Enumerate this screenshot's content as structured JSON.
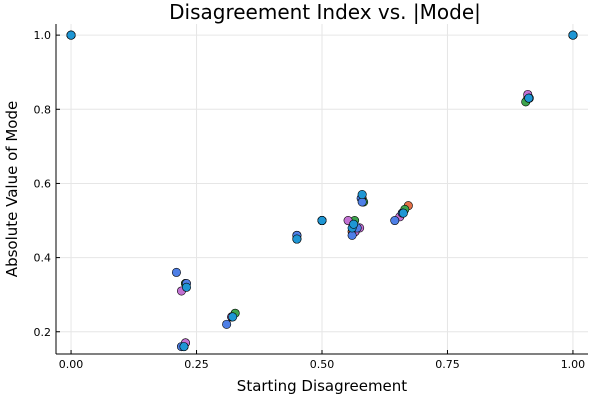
{
  "chart_data": {
    "type": "scatter",
    "title": "Disagreement Index vs. |Mode|",
    "xlabel": "Starting Disagreement",
    "ylabel": "Absolute Value of Mode",
    "xlim": [
      -0.03,
      1.03
    ],
    "ylim": [
      0.14,
      1.03
    ],
    "xticks": [
      0.0,
      0.25,
      0.5,
      0.75,
      1.0
    ],
    "xtick_labels": [
      "0.00",
      "0.25",
      "0.50",
      "0.75",
      "1.00"
    ],
    "yticks": [
      0.2,
      0.4,
      0.6,
      0.8,
      1.0
    ],
    "ytick_labels": [
      "0.2",
      "0.4",
      "0.6",
      "0.8",
      "1.0"
    ],
    "grid": true,
    "legend": "none",
    "series": [
      {
        "color": "#E26F46",
        "x": [
          0.0,
          0.228,
          0.228,
          0.32,
          0.45,
          0.5,
          0.56,
          0.58,
          0.66,
          0.672,
          0.91,
          1.0
        ],
        "y": [
          1.0,
          0.17,
          0.33,
          0.24,
          0.45,
          0.5,
          0.47,
          0.56,
          0.52,
          0.54,
          0.83,
          1.0
        ]
      },
      {
        "color": "#3DA44D",
        "x": [
          0.0,
          0.225,
          0.228,
          0.327,
          0.45,
          0.5,
          0.565,
          0.583,
          0.665,
          0.906,
          1.0
        ],
        "y": [
          1.0,
          0.16,
          0.33,
          0.25,
          0.45,
          0.5,
          0.5,
          0.55,
          0.53,
          0.82,
          1.0
        ]
      },
      {
        "color": "#C271D2",
        "x": [
          0.0,
          0.22,
          0.228,
          0.32,
          0.45,
          0.5,
          0.552,
          0.566,
          0.575,
          0.655,
          0.91,
          1.0
        ],
        "y": [
          1.0,
          0.31,
          0.17,
          0.24,
          0.46,
          0.5,
          0.5,
          0.47,
          0.48,
          0.51,
          0.84,
          1.0
        ]
      },
      {
        "color": "#4E7FE6",
        "x": [
          0.0,
          0.21,
          0.22,
          0.23,
          0.31,
          0.45,
          0.5,
          0.56,
          0.57,
          0.578,
          0.58,
          0.645,
          0.66,
          0.913,
          1.0
        ],
        "y": [
          1.0,
          0.36,
          0.16,
          0.33,
          0.22,
          0.46,
          0.5,
          0.46,
          0.48,
          0.56,
          0.55,
          0.5,
          0.52,
          0.83,
          1.0
        ]
      },
      {
        "color": "#1E96D4",
        "x": [
          0.0,
          0.225,
          0.23,
          0.322,
          0.45,
          0.5,
          0.56,
          0.563,
          0.58,
          0.662,
          0.912,
          1.0
        ],
        "y": [
          1.0,
          0.16,
          0.32,
          0.24,
          0.45,
          0.5,
          0.48,
          0.49,
          0.57,
          0.52,
          0.83,
          1.0
        ]
      }
    ]
  }
}
